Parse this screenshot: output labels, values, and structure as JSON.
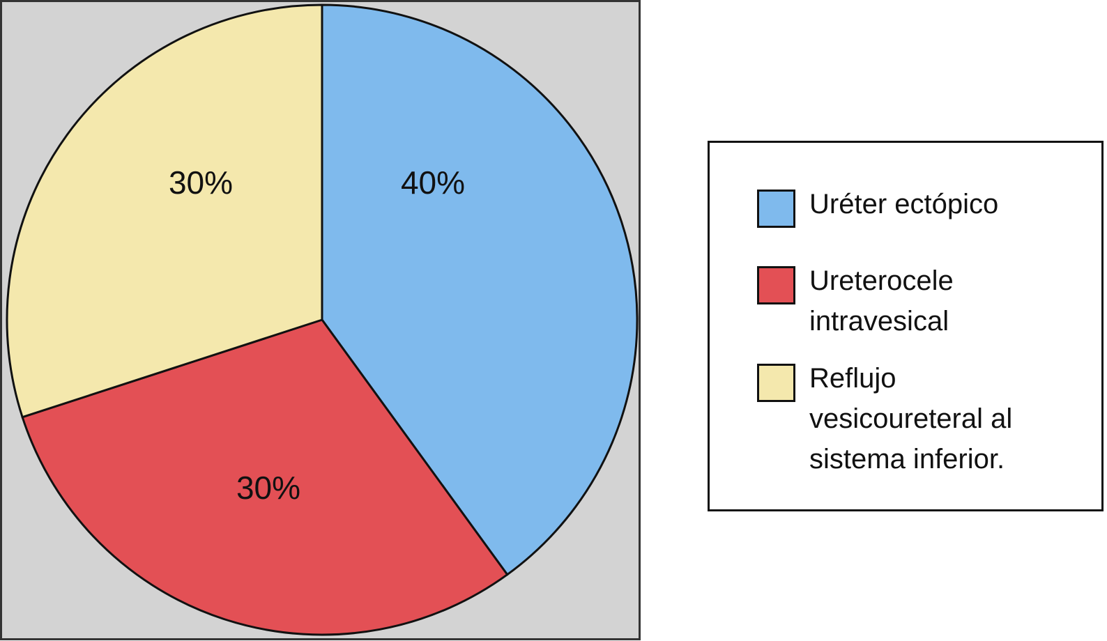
{
  "chart_data": {
    "type": "pie",
    "categories": [
      "Uréter ectópico",
      "Ureterocele intravesical",
      "Reflujo vesicoureteral al sistema inferior."
    ],
    "values": [
      40,
      30,
      30
    ],
    "value_labels": [
      "40%",
      "30%",
      "30%"
    ],
    "colors": [
      "#7fbaed",
      "#e35055",
      "#f4e8ad"
    ]
  }
}
